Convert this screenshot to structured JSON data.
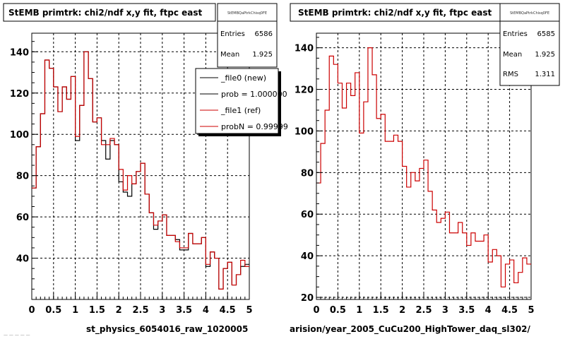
{
  "chart_data": [
    {
      "type": "line",
      "title": "StEMB primtrk: chi2/ndf x,y fit, ftpc east",
      "xlabel": "st_physics_6054016_raw_1020005",
      "ylabel": "",
      "xlim": [
        0,
        5
      ],
      "ylim": [
        20,
        149
      ],
      "x_ticks": [
        "0",
        "0.5",
        "1",
        "1.5",
        "2",
        "2.5",
        "3",
        "3.5",
        "4",
        "4.5",
        "5"
      ],
      "y_ticks": [
        "40",
        "60",
        "80",
        "100",
        "120",
        "140"
      ],
      "grid": true,
      "stats_box": {
        "name": "StEMBQaPtrkChisq0FE",
        "rows": [
          {
            "label": "Entries",
            "value": "6586"
          },
          {
            "label": "Mean",
            "value": "1.925"
          }
        ]
      },
      "legend": {
        "placement": "top-right",
        "entries": [
          "_file0 (new)",
          "prob = 1.000000",
          "_file1 (ref)",
          "probN = 0.99999"
        ]
      },
      "series": [
        {
          "name": "_file0 (new)",
          "color": "#000000",
          "values": [
            74,
            94,
            110,
            136,
            132,
            123,
            111,
            123,
            117,
            128,
            97,
            114,
            140,
            127,
            106,
            108,
            97,
            88,
            97,
            95,
            77,
            72,
            70,
            76,
            82,
            86,
            71,
            62,
            54,
            58,
            61,
            51,
            51,
            49,
            44,
            44,
            52,
            47,
            47,
            50,
            36,
            43,
            40,
            25,
            35,
            38,
            27,
            32,
            36,
            37
          ]
        },
        {
          "name": "_file1 (ref)",
          "color": "#cc0000",
          "values": [
            74,
            94,
            110,
            136,
            132,
            123,
            111,
            123,
            117,
            128,
            99,
            114,
            140,
            127,
            106,
            108,
            95,
            95,
            98,
            95,
            83,
            73,
            80,
            76,
            82,
            86,
            71,
            62,
            56,
            58,
            61,
            51,
            51,
            48,
            45,
            45,
            52,
            47,
            47,
            50,
            37,
            43,
            40,
            25,
            35,
            38,
            27,
            32,
            39,
            36
          ]
        }
      ]
    },
    {
      "type": "line",
      "title": "StEMB primtrk: chi2/ndf x,y fit, ftpc east",
      "xlabel": "arision/year_2005_CuCu200_HighTower_daq_sl302/",
      "ylabel": "",
      "xlim": [
        0,
        5
      ],
      "ylim": [
        19,
        147
      ],
      "x_ticks": [
        "0",
        "0.5",
        "1",
        "1.5",
        "2",
        "2.5",
        "3",
        "3.5",
        "4",
        "4.5",
        "5"
      ],
      "y_ticks": [
        "20",
        "40",
        "60",
        "80",
        "100",
        "120",
        "140"
      ],
      "grid": true,
      "stats_box": {
        "name": "StEMBQaPtrkChisq0FE",
        "rows": [
          {
            "label": "Entries",
            "value": "6585"
          },
          {
            "label": "Mean",
            "value": "1.925"
          },
          {
            "label": "RMS",
            "value": "1.311"
          }
        ]
      },
      "series": [
        {
          "name": "",
          "color": "#cc0000",
          "values": [
            75,
            94,
            110,
            136,
            132,
            123,
            111,
            123,
            117,
            128,
            99,
            114,
            140,
            127,
            106,
            108,
            95,
            95,
            98,
            95,
            83,
            73,
            80,
            76,
            82,
            86,
            71,
            62,
            56,
            58,
            61,
            51,
            51,
            56,
            51,
            45,
            51,
            47,
            47,
            50,
            37,
            43,
            40,
            25,
            36,
            38,
            27,
            32,
            39,
            36
          ]
        }
      ]
    }
  ],
  "footer_scrap": "— — — — —"
}
